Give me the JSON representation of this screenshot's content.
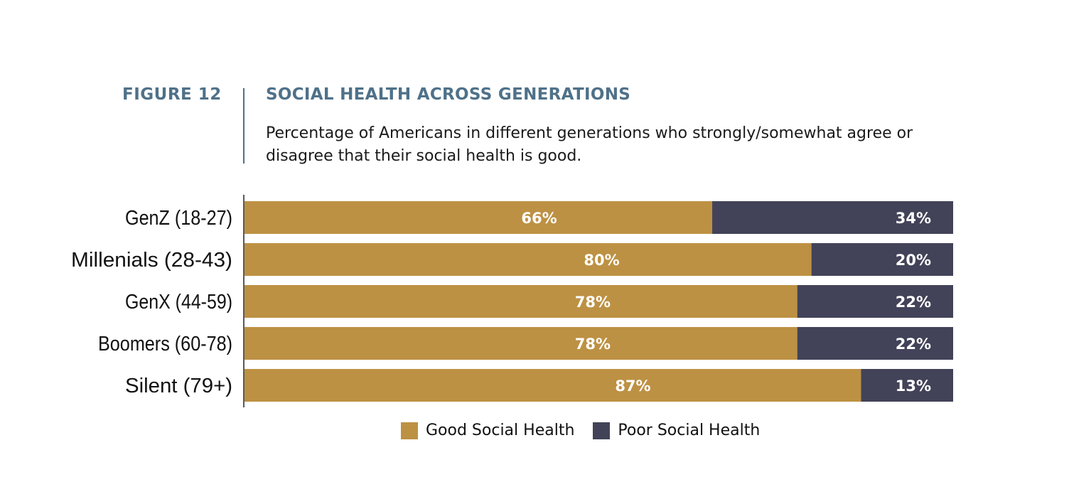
{
  "header": {
    "figure_label": "FIGURE 12",
    "title": "SOCIAL HEALTH ACROSS GENERATIONS",
    "subtitle": "Percentage of Americans in different generations who strongly/somewhat agree or disagree that their social health is good."
  },
  "colors": {
    "good": "#bd9143",
    "poor": "#424358",
    "accent": "#4f7189"
  },
  "chart_data": {
    "type": "bar",
    "orientation": "horizontal",
    "stacked": true,
    "title": "SOCIAL HEALTH ACROSS GENERATIONS",
    "subtitle": "Percentage of Americans in different generations who strongly/somewhat agree or disagree that their social health is good.",
    "categories": [
      "GenZ (18-27)",
      "Millenials (28-43)",
      "GenX (44-59)",
      "Boomers (60-78)",
      "Silent (79+)"
    ],
    "series": [
      {
        "name": "Good Social Health",
        "values": [
          66,
          80,
          78,
          78,
          87
        ],
        "labels": [
          "66%",
          "80%",
          "78%",
          "78%",
          "87%"
        ]
      },
      {
        "name": "Poor Social Health",
        "values": [
          34,
          20,
          22,
          22,
          13
        ],
        "labels": [
          "34%",
          "20%",
          "22%",
          "22%",
          "13%"
        ]
      }
    ],
    "xlim": [
      0,
      100
    ],
    "unit": "%",
    "grid": false,
    "legend_position": "bottom-center"
  },
  "legend": {
    "good_label": "Good Social Health",
    "poor_label": "Poor Social Health"
  }
}
